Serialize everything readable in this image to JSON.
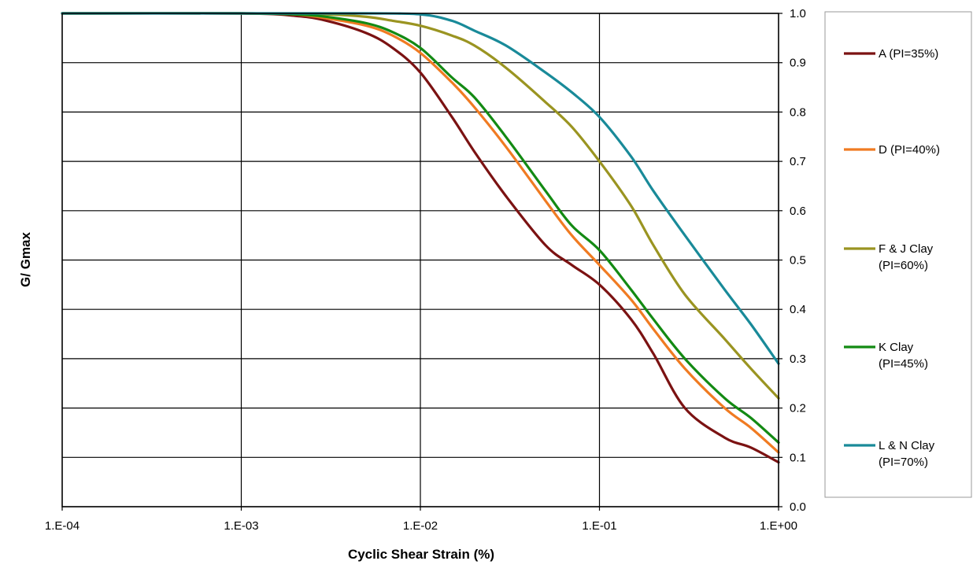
{
  "chart_data": {
    "type": "line",
    "xlabel": "Cyclic Shear Strain (%)",
    "ylabel": "G/ Gmax",
    "x_scale": "log",
    "xlim": [
      0.0001,
      1
    ],
    "ylim": [
      0,
      1
    ],
    "x_ticks": [
      "1.E-04",
      "1.E-03",
      "1.E-02",
      "1.E-01",
      "1.E+00"
    ],
    "y_ticks": [
      "0.0",
      "0.1",
      "0.2",
      "0.3",
      "0.4",
      "0.5",
      "0.6",
      "0.7",
      "0.8",
      "0.9",
      "1.0"
    ],
    "grid": true,
    "legend_position": "right",
    "series": [
      {
        "name": "A (PI=35%)",
        "label_lines": [
          "A (PI=35%)"
        ],
        "color": "#7b1212",
        "x": [
          0.0001,
          0.001,
          0.002,
          0.003,
          0.005,
          0.007,
          0.01,
          0.015,
          0.02,
          0.03,
          0.05,
          0.07,
          0.1,
          0.15,
          0.2,
          0.3,
          0.5,
          0.7,
          1.0
        ],
        "y": [
          1.0,
          1.0,
          0.995,
          0.985,
          0.96,
          0.93,
          0.88,
          0.79,
          0.72,
          0.63,
          0.53,
          0.49,
          0.45,
          0.38,
          0.31,
          0.2,
          0.14,
          0.12,
          0.09
        ]
      },
      {
        "name": "D (PI=40%)",
        "label_lines": [
          "D (PI=40%)"
        ],
        "color": "#f07b22",
        "x": [
          0.0001,
          0.001,
          0.002,
          0.003,
          0.005,
          0.007,
          0.01,
          0.015,
          0.02,
          0.03,
          0.05,
          0.07,
          0.1,
          0.15,
          0.2,
          0.3,
          0.5,
          0.7,
          1.0
        ],
        "y": [
          1.0,
          1.0,
          0.998,
          0.99,
          0.975,
          0.955,
          0.92,
          0.86,
          0.81,
          0.73,
          0.62,
          0.55,
          0.49,
          0.42,
          0.36,
          0.28,
          0.2,
          0.16,
          0.11
        ]
      },
      {
        "name": "F & J Clay (PI=60%)",
        "label_lines": [
          "F & J Clay",
          "(PI=60%)"
        ],
        "color": "#9a9421",
        "x": [
          0.0001,
          0.001,
          0.003,
          0.005,
          0.007,
          0.01,
          0.015,
          0.02,
          0.03,
          0.05,
          0.07,
          0.1,
          0.15,
          0.2,
          0.3,
          0.5,
          0.7,
          1.0
        ],
        "y": [
          1.0,
          1.0,
          0.998,
          0.993,
          0.985,
          0.975,
          0.955,
          0.935,
          0.89,
          0.82,
          0.77,
          0.7,
          0.61,
          0.53,
          0.43,
          0.34,
          0.28,
          0.22
        ]
      },
      {
        "name": "K Clay (PI=45%)",
        "label_lines": [
          "K Clay",
          "(PI=45%)"
        ],
        "color": "#138a13",
        "x": [
          0.0001,
          0.001,
          0.002,
          0.003,
          0.005,
          0.007,
          0.01,
          0.015,
          0.02,
          0.03,
          0.05,
          0.07,
          0.1,
          0.15,
          0.2,
          0.3,
          0.5,
          0.7,
          1.0
        ],
        "y": [
          1.0,
          1.0,
          0.998,
          0.993,
          0.98,
          0.962,
          0.93,
          0.87,
          0.83,
          0.75,
          0.64,
          0.57,
          0.52,
          0.44,
          0.38,
          0.3,
          0.22,
          0.18,
          0.13
        ]
      },
      {
        "name": "L & N Clay (PI=70%)",
        "label_lines": [
          "L & N Clay",
          "(PI=70%)"
        ],
        "color": "#198a99",
        "x": [
          0.0001,
          0.001,
          0.005,
          0.01,
          0.015,
          0.02,
          0.03,
          0.05,
          0.07,
          0.1,
          0.15,
          0.2,
          0.3,
          0.5,
          0.7,
          1.0
        ],
        "y": [
          1.0,
          1.0,
          1.0,
          0.998,
          0.985,
          0.965,
          0.935,
          0.88,
          0.84,
          0.79,
          0.71,
          0.64,
          0.55,
          0.44,
          0.37,
          0.29
        ]
      }
    ]
  }
}
